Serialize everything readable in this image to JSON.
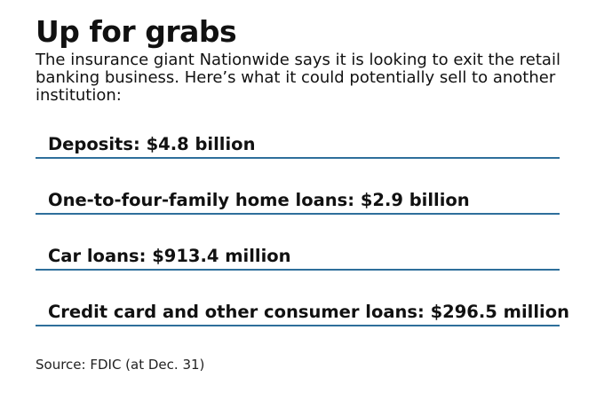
{
  "title": "Up for grabs",
  "subtitle": "The insurance giant Nationwide says it is looking to exit the retail banking business. Here’s what it could potentially sell to another institution:",
  "source": "Source: FDIC (at Dec. 31)",
  "colors": {
    "rule": "#2e6f9b",
    "text": "#111111"
  },
  "chart_data": {
    "type": "table",
    "title": "Up for grabs",
    "rows": [
      {
        "label": "Deposits: $4.8 billion",
        "category": "Deposits",
        "value": 4.8,
        "unit": "billion"
      },
      {
        "label": "One-to-four-family home loans: $2.9 billion",
        "category": "One-to-four-family home loans",
        "value": 2.9,
        "unit": "billion"
      },
      {
        "label": "Car loans: $913.4 million",
        "category": "Car loans",
        "value": 913.4,
        "unit": "million"
      },
      {
        "label": "Credit card and other consumer loans: $296.5 million",
        "category": "Credit card and other consumer loans",
        "value": 296.5,
        "unit": "million"
      }
    ]
  }
}
